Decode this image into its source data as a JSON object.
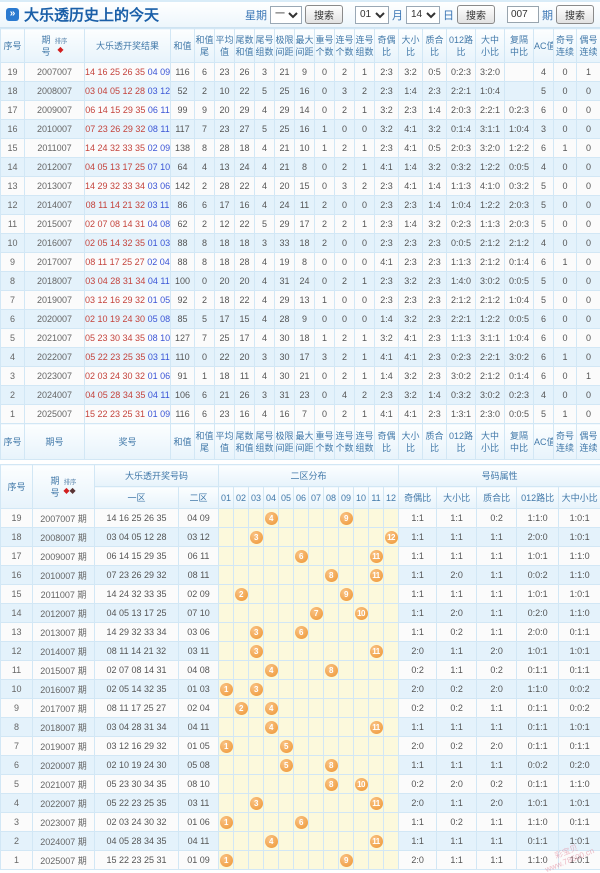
{
  "title": "大乐透历史上的今天",
  "icons": {
    "title_bullet": "»",
    "sort_diamond": "◆"
  },
  "controls": {
    "week_label": "星期",
    "week_value": "一",
    "month_value": "01",
    "month_label": "月",
    "day_value": "14",
    "day_label": "日",
    "issue_value": "007",
    "issue_label": "期",
    "search_label": "搜索"
  },
  "table1": {
    "sort_label": "排序",
    "headers": [
      {
        "t": "序号"
      },
      {
        "t": "期",
        "b": "号",
        "sort": 1
      },
      {
        "t": "大乐透开奖结果"
      },
      {
        "t": "和值"
      },
      {
        "t": "和值",
        "b": "尾"
      },
      {
        "t": "平均",
        "b": "值"
      },
      {
        "t": "尾数",
        "b": "和值"
      },
      {
        "t": "尾号",
        "b": "组数"
      },
      {
        "t": "极限",
        "b": "间距"
      },
      {
        "t": "最大",
        "b": "间距"
      },
      {
        "t": "重号",
        "b": "个数"
      },
      {
        "t": "连号",
        "b": "个数"
      },
      {
        "t": "连号",
        "b": "组数"
      },
      {
        "t": "奇偶",
        "b": "比"
      },
      {
        "t": "大小",
        "b": "比"
      },
      {
        "t": "质合",
        "b": "比"
      },
      {
        "t": "012路",
        "b": "比"
      },
      {
        "t": "大中",
        "b": "小比"
      },
      {
        "t": "复隔",
        "b": "中比"
      },
      {
        "t": "AC值"
      },
      {
        "t": "奇号",
        "b": "连续"
      },
      {
        "t": "偶号",
        "b": "连续"
      }
    ],
    "footer_headers": [
      {
        "t": "序号"
      },
      {
        "t": "期号"
      },
      {
        "t": "奖号"
      },
      {
        "t": "和值"
      },
      {
        "t": "和值",
        "b": "尾"
      },
      {
        "t": "平均",
        "b": "值"
      },
      {
        "t": "尾数",
        "b": "和值"
      },
      {
        "t": "尾号",
        "b": "组数"
      },
      {
        "t": "极限",
        "b": "间距"
      },
      {
        "t": "最大",
        "b": "间距"
      },
      {
        "t": "重号",
        "b": "个数"
      },
      {
        "t": "连号",
        "b": "个数"
      },
      {
        "t": "连号",
        "b": "组数"
      },
      {
        "t": "奇偶",
        "b": "比"
      },
      {
        "t": "大小",
        "b": "比"
      },
      {
        "t": "质合",
        "b": "比"
      },
      {
        "t": "012路",
        "b": "比"
      },
      {
        "t": "大中",
        "b": "小比"
      },
      {
        "t": "复隔",
        "b": "中比"
      },
      {
        "t": "AC值"
      },
      {
        "t": "奇号",
        "b": "连续"
      },
      {
        "t": "偶号",
        "b": "连续"
      }
    ],
    "rows": [
      {
        "seq": "19",
        "issue": "2007007",
        "front": "14 16 25 26 35",
        "back": "04 09",
        "stats": [
          "116",
          "6",
          "23",
          "26",
          "3",
          "21",
          "9",
          "0",
          "2",
          "1",
          "2:3",
          "3:2",
          "0:5",
          "0:2:3",
          "3:2:0",
          "",
          "4",
          "0",
          "1"
        ]
      },
      {
        "seq": "18",
        "issue": "2008007",
        "front": "03 04 05 12 28",
        "back": "03 12",
        "stats": [
          "52",
          "2",
          "10",
          "22",
          "5",
          "25",
          "16",
          "0",
          "3",
          "2",
          "2:3",
          "1:4",
          "2:3",
          "2:2:1",
          "1:0:4",
          "",
          "5",
          "0",
          "0"
        ]
      },
      {
        "seq": "17",
        "issue": "2009007",
        "front": "06 14 15 29 35",
        "back": "06 11",
        "stats": [
          "99",
          "9",
          "20",
          "29",
          "4",
          "29",
          "14",
          "0",
          "2",
          "1",
          "3:2",
          "2:3",
          "1:4",
          "2:0:3",
          "2:2:1",
          "0:2:3",
          "6",
          "0",
          "0"
        ]
      },
      {
        "seq": "16",
        "issue": "2010007",
        "front": "07 23 26 29 32",
        "back": "08 11",
        "stats": [
          "117",
          "7",
          "23",
          "27",
          "5",
          "25",
          "16",
          "1",
          "0",
          "0",
          "3:2",
          "4:1",
          "3:2",
          "0:1:4",
          "3:1:1",
          "1:0:4",
          "3",
          "0",
          "0"
        ]
      },
      {
        "seq": "15",
        "issue": "2011007",
        "front": "14 24 32 33 35",
        "back": "02 09",
        "stats": [
          "138",
          "8",
          "28",
          "18",
          "4",
          "21",
          "10",
          "1",
          "2",
          "1",
          "2:3",
          "4:1",
          "0:5",
          "2:0:3",
          "3:2:0",
          "1:2:2",
          "6",
          "1",
          "0"
        ]
      },
      {
        "seq": "14",
        "issue": "2012007",
        "front": "04 05 13 17 25",
        "back": "07 10",
        "stats": [
          "64",
          "4",
          "13",
          "24",
          "4",
          "21",
          "8",
          "0",
          "2",
          "1",
          "4:1",
          "1:4",
          "3:2",
          "0:3:2",
          "1:2:2",
          "0:0:5",
          "4",
          "0",
          "0"
        ]
      },
      {
        "seq": "13",
        "issue": "2013007",
        "front": "14 29 32 33 34",
        "back": "03 06",
        "stats": [
          "142",
          "2",
          "28",
          "22",
          "4",
          "20",
          "15",
          "0",
          "3",
          "2",
          "2:3",
          "4:1",
          "1:4",
          "1:1:3",
          "4:1:0",
          "0:3:2",
          "5",
          "0",
          "0"
        ]
      },
      {
        "seq": "12",
        "issue": "2014007",
        "front": "08 11 14 21 32",
        "back": "03 11",
        "stats": [
          "86",
          "6",
          "17",
          "16",
          "4",
          "24",
          "11",
          "2",
          "0",
          "0",
          "2:3",
          "2:3",
          "1:4",
          "1:0:4",
          "1:2:2",
          "2:0:3",
          "5",
          "0",
          "0"
        ]
      },
      {
        "seq": "11",
        "issue": "2015007",
        "front": "02 07 08 14 31",
        "back": "04 08",
        "stats": [
          "62",
          "2",
          "12",
          "22",
          "5",
          "29",
          "17",
          "2",
          "2",
          "1",
          "2:3",
          "1:4",
          "3:2",
          "0:2:3",
          "1:1:3",
          "2:0:3",
          "5",
          "0",
          "0"
        ]
      },
      {
        "seq": "10",
        "issue": "2016007",
        "front": "02 05 14 32 35",
        "back": "01 03",
        "stats": [
          "88",
          "8",
          "18",
          "18",
          "3",
          "33",
          "18",
          "2",
          "0",
          "0",
          "2:3",
          "2:3",
          "2:3",
          "0:0:5",
          "2:1:2",
          "2:1:2",
          "4",
          "0",
          "0"
        ]
      },
      {
        "seq": "9",
        "issue": "2017007",
        "front": "08 11 17 25 27",
        "back": "02 04",
        "stats": [
          "88",
          "8",
          "18",
          "28",
          "4",
          "19",
          "8",
          "0",
          "0",
          "0",
          "4:1",
          "2:3",
          "2:3",
          "1:1:3",
          "2:1:2",
          "0:1:4",
          "6",
          "1",
          "0"
        ]
      },
      {
        "seq": "8",
        "issue": "2018007",
        "front": "03 04 28 31 34",
        "back": "04 11",
        "stats": [
          "100",
          "0",
          "20",
          "20",
          "4",
          "31",
          "24",
          "0",
          "2",
          "1",
          "2:3",
          "3:2",
          "2:3",
          "1:4:0",
          "3:0:2",
          "0:0:5",
          "5",
          "0",
          "0"
        ]
      },
      {
        "seq": "7",
        "issue": "2019007",
        "front": "03 12 16 29 32",
        "back": "01 05",
        "stats": [
          "92",
          "2",
          "18",
          "22",
          "4",
          "29",
          "13",
          "1",
          "0",
          "0",
          "2:3",
          "2:3",
          "2:3",
          "2:1:2",
          "2:1:2",
          "1:0:4",
          "5",
          "0",
          "0"
        ]
      },
      {
        "seq": "6",
        "issue": "2020007",
        "front": "02 10 19 24 30",
        "back": "05 08",
        "stats": [
          "85",
          "5",
          "17",
          "15",
          "4",
          "28",
          "9",
          "0",
          "0",
          "0",
          "1:4",
          "3:2",
          "2:3",
          "2:2:1",
          "1:2:2",
          "0:0:5",
          "6",
          "0",
          "0"
        ]
      },
      {
        "seq": "5",
        "issue": "2021007",
        "front": "05 23 30 34 35",
        "back": "08 10",
        "stats": [
          "127",
          "7",
          "25",
          "17",
          "4",
          "30",
          "18",
          "1",
          "2",
          "1",
          "3:2",
          "4:1",
          "2:3",
          "1:1:3",
          "3:1:1",
          "1:0:4",
          "6",
          "0",
          "0"
        ]
      },
      {
        "seq": "4",
        "issue": "2022007",
        "front": "05 22 23 25 35",
        "back": "03 11",
        "stats": [
          "110",
          "0",
          "22",
          "20",
          "3",
          "30",
          "17",
          "3",
          "2",
          "1",
          "4:1",
          "4:1",
          "2:3",
          "0:2:3",
          "2:2:1",
          "3:0:2",
          "6",
          "1",
          "0"
        ]
      },
      {
        "seq": "3",
        "issue": "2023007",
        "front": "02 03 24 30 32",
        "back": "01 06",
        "stats": [
          "91",
          "1",
          "18",
          "11",
          "4",
          "30",
          "21",
          "0",
          "2",
          "1",
          "1:4",
          "3:2",
          "2:3",
          "3:0:2",
          "2:1:2",
          "0:1:4",
          "6",
          "0",
          "1"
        ]
      },
      {
        "seq": "2",
        "issue": "2024007",
        "front": "04 05 28 34 35",
        "back": "04 11",
        "stats": [
          "106",
          "6",
          "21",
          "26",
          "3",
          "31",
          "23",
          "0",
          "4",
          "2",
          "2:3",
          "3:2",
          "1:4",
          "0:3:2",
          "3:0:2",
          "0:2:3",
          "4",
          "0",
          "0"
        ]
      },
      {
        "seq": "1",
        "issue": "2025007",
        "front": "15 22 23 25 31",
        "back": "01 09",
        "stats": [
          "116",
          "6",
          "23",
          "16",
          "4",
          "16",
          "7",
          "0",
          "2",
          "1",
          "4:1",
          "4:1",
          "2:3",
          "1:3:1",
          "2:3:0",
          "0:0:5",
          "5",
          "1",
          "0"
        ]
      }
    ]
  },
  "table2": {
    "sort_label": "排序",
    "seq_label": "序号",
    "issue_label_top": "期",
    "issue_label_bottom": "号",
    "group_numbers": "大乐透开奖号码",
    "group_dist": "二区分布",
    "group_attr": "号码属性",
    "zone1_label": "一区",
    "zone2_label": "二区",
    "dist_labels": [
      "01",
      "02",
      "03",
      "04",
      "05",
      "06",
      "07",
      "08",
      "09",
      "10",
      "11",
      "12"
    ],
    "attr_labels": [
      "奇偶比",
      "大小比",
      "质合比",
      "012路比",
      "大中小比"
    ],
    "rows": [
      {
        "seq": "19",
        "issue": "2007007 期",
        "front": "14 16 25 26 35",
        "back": "04 09",
        "balls": [
          4,
          9
        ],
        "attrs": [
          "1:1",
          "1:1",
          "0:2",
          "1:1:0",
          "1:0:1"
        ]
      },
      {
        "seq": "18",
        "issue": "2008007 期",
        "front": "03 04 05 12 28",
        "back": "03 12",
        "balls": [
          3,
          12
        ],
        "attrs": [
          "1:1",
          "1:1",
          "1:1",
          "2:0:0",
          "1:0:1"
        ]
      },
      {
        "seq": "17",
        "issue": "2009007 期",
        "front": "06 14 15 29 35",
        "back": "06 11",
        "balls": [
          6,
          11
        ],
        "attrs": [
          "1:1",
          "1:1",
          "1:1",
          "1:0:1",
          "1:1:0"
        ]
      },
      {
        "seq": "16",
        "issue": "2010007 期",
        "front": "07 23 26 29 32",
        "back": "08 11",
        "balls": [
          8,
          11
        ],
        "attrs": [
          "1:1",
          "2:0",
          "1:1",
          "0:0:2",
          "1:1:0"
        ]
      },
      {
        "seq": "15",
        "issue": "2011007 期",
        "front": "14 24 32 33 35",
        "back": "02 09",
        "balls": [
          2,
          9
        ],
        "attrs": [
          "1:1",
          "1:1",
          "1:1",
          "1:0:1",
          "1:0:1"
        ]
      },
      {
        "seq": "14",
        "issue": "2012007 期",
        "front": "04 05 13 17 25",
        "back": "07 10",
        "balls": [
          7,
          10
        ],
        "attrs": [
          "1:1",
          "2:0",
          "1:1",
          "0:2:0",
          "1:1:0"
        ]
      },
      {
        "seq": "13",
        "issue": "2013007 期",
        "front": "14 29 32 33 34",
        "back": "03 06",
        "balls": [
          3,
          6
        ],
        "attrs": [
          "1:1",
          "0:2",
          "1:1",
          "2:0:0",
          "0:1:1"
        ]
      },
      {
        "seq": "12",
        "issue": "2014007 期",
        "front": "08 11 14 21 32",
        "back": "03 11",
        "balls": [
          3,
          11
        ],
        "attrs": [
          "2:0",
          "1:1",
          "2:0",
          "1:0:1",
          "1:0:1"
        ]
      },
      {
        "seq": "11",
        "issue": "2015007 期",
        "front": "02 07 08 14 31",
        "back": "04 08",
        "balls": [
          4,
          8
        ],
        "attrs": [
          "0:2",
          "1:1",
          "0:2",
          "0:1:1",
          "0:1:1"
        ]
      },
      {
        "seq": "10",
        "issue": "2016007 期",
        "front": "02 05 14 32 35",
        "back": "01 03",
        "balls": [
          1,
          3
        ],
        "attrs": [
          "2:0",
          "0:2",
          "2:0",
          "1:1:0",
          "0:0:2"
        ]
      },
      {
        "seq": "9",
        "issue": "2017007 期",
        "front": "08 11 17 25 27",
        "back": "02 04",
        "balls": [
          2,
          4
        ],
        "attrs": [
          "0:2",
          "0:2",
          "1:1",
          "0:1:1",
          "0:0:2"
        ]
      },
      {
        "seq": "8",
        "issue": "2018007 期",
        "front": "03 04 28 31 34",
        "back": "04 11",
        "balls": [
          4,
          11
        ],
        "attrs": [
          "1:1",
          "1:1",
          "1:1",
          "0:1:1",
          "1:0:1"
        ]
      },
      {
        "seq": "7",
        "issue": "2019007 期",
        "front": "03 12 16 29 32",
        "back": "01 05",
        "balls": [
          1,
          5
        ],
        "attrs": [
          "2:0",
          "0:2",
          "2:0",
          "0:1:1",
          "0:1:1"
        ]
      },
      {
        "seq": "6",
        "issue": "2020007 期",
        "front": "02 10 19 24 30",
        "back": "05 08",
        "balls": [
          5,
          8
        ],
        "attrs": [
          "1:1",
          "1:1",
          "1:1",
          "0:0:2",
          "0:2:0"
        ]
      },
      {
        "seq": "5",
        "issue": "2021007 期",
        "front": "05 23 30 34 35",
        "back": "08 10",
        "balls": [
          8,
          10
        ],
        "attrs": [
          "0:2",
          "2:0",
          "0:2",
          "0:1:1",
          "1:1:0"
        ]
      },
      {
        "seq": "4",
        "issue": "2022007 期",
        "front": "05 22 23 25 35",
        "back": "03 11",
        "balls": [
          3,
          11
        ],
        "attrs": [
          "2:0",
          "1:1",
          "2:0",
          "1:0:1",
          "1:0:1"
        ]
      },
      {
        "seq": "3",
        "issue": "2023007 期",
        "front": "02 03 24 30 32",
        "back": "01 06",
        "balls": [
          1,
          6
        ],
        "attrs": [
          "1:1",
          "0:2",
          "1:1",
          "1:1:0",
          "0:1:1"
        ]
      },
      {
        "seq": "2",
        "issue": "2024007 期",
        "front": "04 05 28 34 35",
        "back": "04 11",
        "balls": [
          4,
          11
        ],
        "attrs": [
          "1:1",
          "1:1",
          "1:1",
          "0:1:1",
          "1:0:1"
        ]
      },
      {
        "seq": "1",
        "issue": "2025007 期",
        "front": "15 22 23 25 31",
        "back": "01 09",
        "balls": [
          1,
          9
        ],
        "attrs": [
          "2:0",
          "1:1",
          "1:1",
          "1:1:0",
          "1:0:1"
        ]
      }
    ]
  },
  "watermark": {
    "line1": "彩宝贝",
    "line2": "www.78500.cn"
  }
}
